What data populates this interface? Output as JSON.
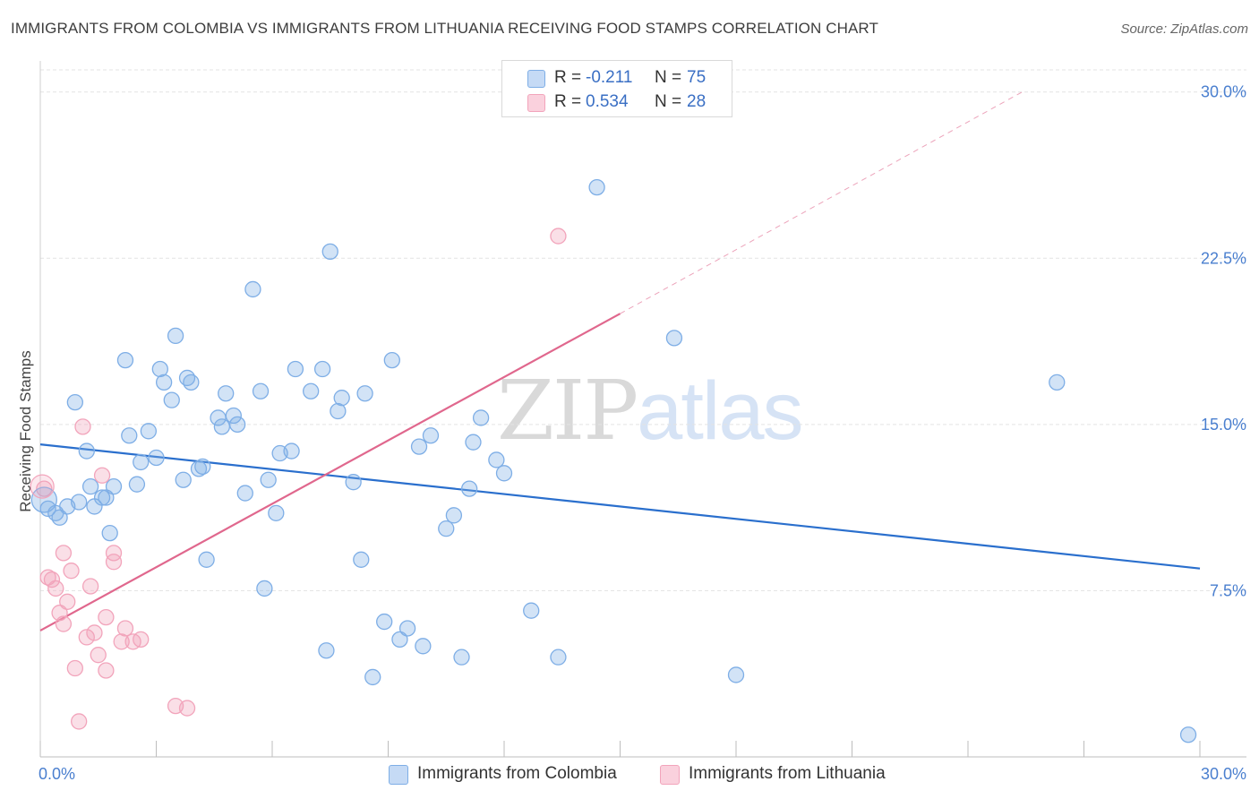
{
  "chart_data": {
    "type": "scatter",
    "title": "IMMIGRANTS FROM COLOMBIA VS IMMIGRANTS FROM LITHUANIA RECEIVING FOOD STAMPS CORRELATION CHART",
    "source": "Source: ZipAtlas.com",
    "ylabel": "Receiving Food Stamps",
    "xlabel": "",
    "x_tick_labels": [
      "0.0%",
      "30.0%"
    ],
    "y_tick_labels": [
      "7.5%",
      "15.0%",
      "22.5%",
      "30.0%"
    ],
    "y_ticks": [
      7.5,
      15.0,
      22.5,
      30.0
    ],
    "xlim": [
      0,
      30
    ],
    "ylim": [
      0,
      31
    ],
    "grid": true,
    "watermark": {
      "zip": "ZIP",
      "atlas": "atlas"
    },
    "legend": [
      {
        "r_label": "R =",
        "r_value": "-0.211",
        "n_label": "N =",
        "n_value": "75"
      },
      {
        "r_label": "R =",
        "r_value": "0.534",
        "n_label": "N =",
        "n_value": "28"
      }
    ],
    "series": [
      {
        "name": "Immigrants from Colombia",
        "color": "#7eaee6",
        "line_color": "#2a6fcd",
        "trend": {
          "x": [
            0,
            30
          ],
          "y": [
            14.1,
            8.5
          ],
          "dashed_to": null
        },
        "points": [
          [
            0.2,
            11.2
          ],
          [
            0.5,
            10.8
          ],
          [
            0.4,
            11.0
          ],
          [
            0.9,
            16.0
          ],
          [
            1.0,
            11.5
          ],
          [
            0.7,
            11.3
          ],
          [
            1.2,
            13.8
          ],
          [
            1.3,
            12.2
          ],
          [
            1.4,
            11.3
          ],
          [
            1.6,
            11.7
          ],
          [
            1.7,
            11.7
          ],
          [
            1.9,
            12.2
          ],
          [
            1.8,
            10.1
          ],
          [
            2.2,
            17.9
          ],
          [
            2.3,
            14.5
          ],
          [
            2.5,
            12.3
          ],
          [
            2.6,
            13.3
          ],
          [
            2.8,
            14.7
          ],
          [
            3.0,
            13.5
          ],
          [
            3.1,
            17.5
          ],
          [
            3.2,
            16.9
          ],
          [
            3.4,
            16.1
          ],
          [
            3.5,
            19.0
          ],
          [
            3.7,
            12.5
          ],
          [
            3.8,
            17.1
          ],
          [
            3.9,
            16.9
          ],
          [
            4.1,
            13.0
          ],
          [
            4.2,
            13.1
          ],
          [
            4.3,
            8.9
          ],
          [
            4.6,
            15.3
          ],
          [
            4.7,
            14.9
          ],
          [
            4.8,
            16.4
          ],
          [
            5.0,
            15.4
          ],
          [
            5.1,
            15.0
          ],
          [
            5.3,
            11.9
          ],
          [
            5.5,
            21.1
          ],
          [
            5.7,
            16.5
          ],
          [
            5.8,
            7.6
          ],
          [
            5.9,
            12.5
          ],
          [
            6.1,
            11.0
          ],
          [
            6.2,
            13.7
          ],
          [
            6.5,
            13.8
          ],
          [
            6.6,
            17.5
          ],
          [
            7.0,
            16.5
          ],
          [
            7.3,
            17.5
          ],
          [
            7.5,
            22.8
          ],
          [
            7.7,
            15.6
          ],
          [
            7.8,
            16.2
          ],
          [
            7.4,
            4.8
          ],
          [
            8.1,
            12.4
          ],
          [
            8.3,
            8.9
          ],
          [
            8.4,
            16.4
          ],
          [
            8.6,
            3.6
          ],
          [
            8.9,
            6.1
          ],
          [
            9.1,
            17.9
          ],
          [
            9.3,
            5.3
          ],
          [
            9.5,
            5.8
          ],
          [
            9.8,
            14.0
          ],
          [
            9.9,
            5.0
          ],
          [
            10.1,
            14.5
          ],
          [
            10.5,
            10.3
          ],
          [
            10.7,
            10.9
          ],
          [
            10.9,
            4.5
          ],
          [
            11.1,
            12.1
          ],
          [
            11.2,
            14.2
          ],
          [
            11.4,
            15.3
          ],
          [
            11.8,
            13.4
          ],
          [
            12.0,
            12.8
          ],
          [
            12.7,
            6.6
          ],
          [
            13.4,
            4.5
          ],
          [
            14.4,
            25.7
          ],
          [
            16.4,
            18.9
          ],
          [
            18.0,
            3.7
          ],
          [
            26.3,
            16.9
          ],
          [
            29.7,
            1.0
          ]
        ]
      },
      {
        "name": "Immigrants from Lithuania",
        "color": "#f2a4bb",
        "line_color": "#e0678d",
        "trend": {
          "x": [
            0,
            15
          ],
          "y": [
            5.7,
            20.0
          ],
          "dashed_to": [
            25.4,
            30.0
          ]
        },
        "points": [
          [
            0.1,
            12.1
          ],
          [
            0.2,
            8.1
          ],
          [
            0.3,
            8.0
          ],
          [
            0.4,
            7.6
          ],
          [
            0.5,
            6.5
          ],
          [
            0.6,
            9.2
          ],
          [
            0.6,
            6.0
          ],
          [
            0.7,
            7.0
          ],
          [
            0.8,
            8.4
          ],
          [
            0.9,
            4.0
          ],
          [
            1.0,
            1.6
          ],
          [
            1.1,
            14.9
          ],
          [
            1.2,
            5.4
          ],
          [
            1.3,
            7.7
          ],
          [
            1.4,
            5.6
          ],
          [
            1.5,
            4.6
          ],
          [
            1.6,
            12.7
          ],
          [
            1.7,
            6.3
          ],
          [
            1.7,
            3.9
          ],
          [
            1.9,
            9.2
          ],
          [
            1.9,
            8.8
          ],
          [
            2.1,
            5.2
          ],
          [
            2.2,
            5.8
          ],
          [
            2.4,
            5.2
          ],
          [
            2.6,
            5.3
          ],
          [
            3.5,
            2.3
          ],
          [
            3.8,
            2.2
          ],
          [
            13.4,
            23.5
          ]
        ]
      }
    ]
  }
}
